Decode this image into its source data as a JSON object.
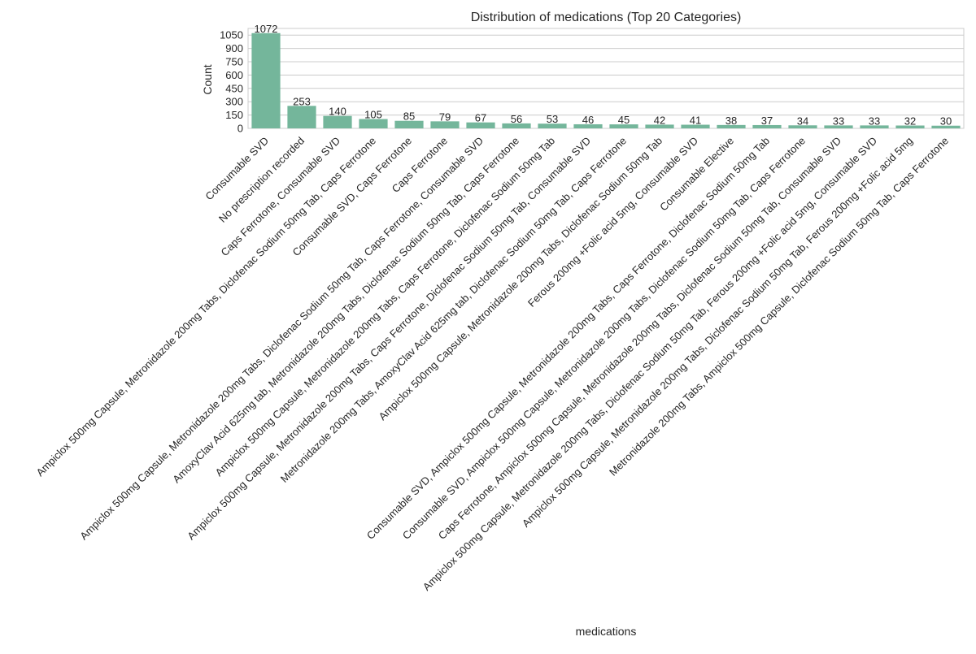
{
  "chart_data": {
    "type": "bar",
    "title": "Distribution of medications (Top 20 Categories)",
    "xlabel": "medications",
    "ylabel": "Count",
    "ylim": [
      0,
      1125
    ],
    "yticks": [
      0,
      150,
      300,
      450,
      600,
      750,
      900,
      1050
    ],
    "grid": true,
    "legend": "none",
    "bar_color": "#74b69b",
    "categories": [
      "Consumable SVD",
      "No prescription recorded",
      "Caps Ferrotone, Consumable SVD",
      "Ampiclox 500mg Capsule, Metronidazole 200mg Tabs, Diclofenac Sodium 50mg Tab, Caps Ferrotone",
      "Consumable SVD, Caps Ferrotone",
      "Caps Ferrotone",
      "Ampiclox 500mg Capsule, Metronidazole 200mg Tabs, Diclofenac Sodium 50mg Tab, Caps Ferrotone, Consumable SVD",
      "AmoxyClav Acid 625mg tab, Metronidazole 200mg Tabs, Diclofenac Sodium 50mg Tab, Caps Ferrotone",
      "Ampiclox 500mg Capsule, Metronidazole 200mg Tabs, Caps Ferrotone, Diclofenac Sodium 50mg Tab",
      "Ampiclox 500mg Capsule, Metronidazole 200mg Tabs, Caps Ferrotone, Diclofenac Sodium 50mg Tab, Consumable SVD",
      "Metronidazole 200mg Tabs, AmoxyClav Acid 625mg tab, Diclofenac Sodium 50mg Tab, Caps Ferrotone",
      "Ampiclox 500mg Capsule, Metronidazole 200mg Tabs, Diclofenac Sodium 50mg Tab",
      "Ferous 200mg +Folic acid 5mg, Consumable SVD",
      "Consumable Elective",
      "Consumable SVD, Ampiclox 500mg Capsule, Metronidazole 200mg Tabs, Caps Ferrotone, Diclofenac Sodium 50mg Tab",
      "Consumable SVD, Ampiclox 500mg Capsule, Metronidazole 200mg Tabs, Diclofenac Sodium 50mg Tab, Caps Ferrotone",
      "Caps Ferrotone, Ampiclox 500mg Capsule, Metronidazole 200mg Tabs, Diclofenac Sodium 50mg Tab, Consumable SVD",
      "Ampiclox 500mg Capsule, Metronidazole 200mg Tabs, Diclofenac Sodium 50mg Tab, Ferous 200mg +Folic acid 5mg, Consumable SVD",
      "Ampiclox 500mg Capsule, Metronidazole 200mg Tabs, Diclofenac Sodium 50mg Tab, Ferous 200mg +Folic acid 5mg",
      "Metronidazole 200mg Tabs, Ampiclox 500mg Capsule, Diclofenac Sodium 50mg Tab, Caps Ferrotone"
    ],
    "values": [
      1072,
      253,
      140,
      105,
      85,
      79,
      67,
      56,
      53,
      46,
      45,
      42,
      41,
      38,
      37,
      34,
      33,
      33,
      32,
      30
    ]
  }
}
